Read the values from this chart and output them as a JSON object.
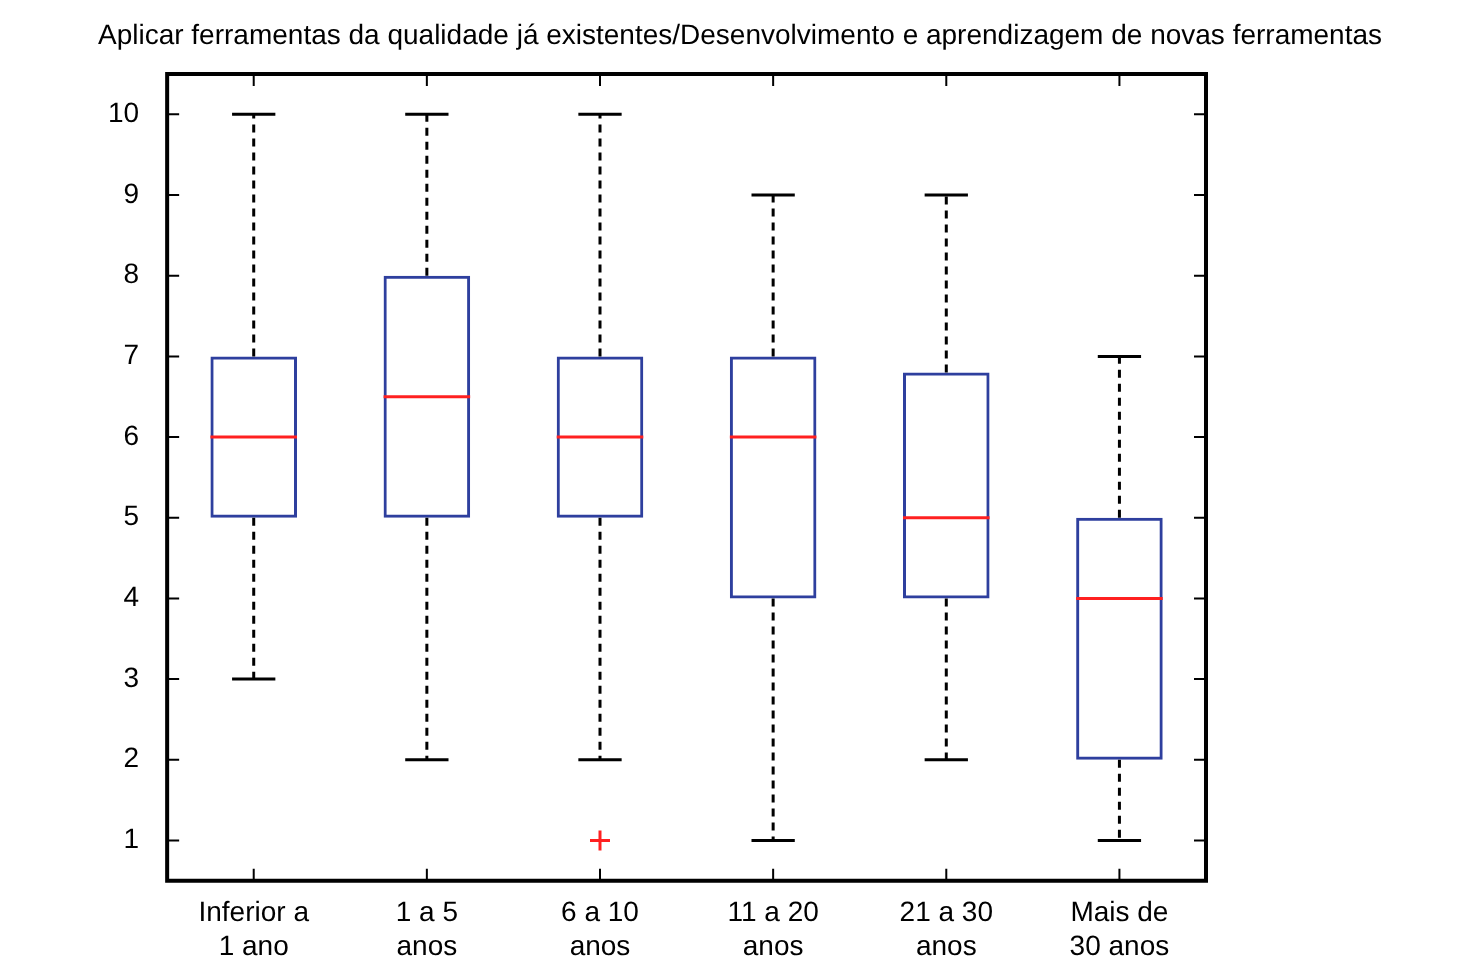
{
  "chart_data": {
    "type": "box",
    "title": "Aplicar ferramentas da qualidade já existentes/Desenvolvimento e aprendizagem de novas ferramentas",
    "categories": [
      "Inferior a\n1 ano",
      "1 a 5\nanos",
      "6 a 10\nanos",
      "11 a 20\nanos",
      "21 a 30\nanos",
      "Mais de\n30 anos"
    ],
    "ylim": [
      0.5,
      10.5
    ],
    "yticks": [
      1,
      2,
      3,
      4,
      5,
      6,
      7,
      8,
      9,
      10
    ],
    "grid": false,
    "series": [
      {
        "color": "#2e3f9e",
        "boxes": [
          {
            "low": 3,
            "q1": 5,
            "median": 6,
            "q3": 7,
            "high": 10
          },
          {
            "low": 2,
            "q1": 5,
            "median": 6.5,
            "q3": 8,
            "high": 10
          },
          {
            "low": 2,
            "q1": 5,
            "median": 6,
            "q3": 7,
            "high": 10,
            "outliers": [
              1
            ]
          },
          {
            "low": 1,
            "q1": 4,
            "median": 6,
            "q3": 7,
            "high": 9
          },
          {
            "low": 2,
            "q1": 4,
            "median": 5,
            "q3": 6.8,
            "high": 9
          },
          {
            "low": 1,
            "q1": 2,
            "median": 4,
            "q3": 5,
            "high": 7
          }
        ]
      }
    ]
  }
}
